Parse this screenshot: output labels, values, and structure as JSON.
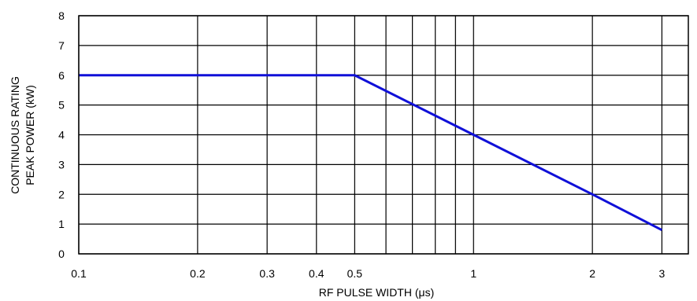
{
  "chart_data": {
    "type": "line",
    "title": "",
    "xlabel": "RF PULSE WIDTH (μs)",
    "ylabel_lines": [
      "CONTINUOUS RATING",
      "PEAK POWER (kW)"
    ],
    "x_scale": "log",
    "xlim": [
      0.1,
      3.5
    ],
    "ylim": [
      0,
      8
    ],
    "x_tick_labels": [
      "0.1",
      "0.2",
      "0.3",
      "0.4",
      "0.5",
      "1",
      "2",
      "3"
    ],
    "x_gridlines": [
      0.1,
      0.2,
      0.3,
      0.4,
      0.5,
      0.6,
      0.7,
      0.8,
      0.9,
      1,
      2,
      3
    ],
    "y_ticks": [
      0,
      1,
      2,
      3,
      4,
      5,
      6,
      7,
      8
    ],
    "grid": true,
    "legend": "none",
    "series": [
      {
        "color": "#1010d8",
        "x": [
          0.1,
          0.5,
          1,
          2,
          3
        ],
        "y": [
          6,
          6,
          4,
          2,
          0.8
        ]
      }
    ]
  }
}
